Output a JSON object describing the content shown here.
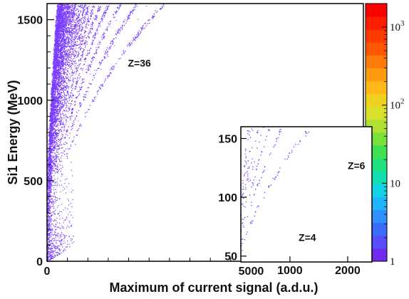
{
  "chart_data": [
    {
      "type": "scatter",
      "title": "",
      "xlabel": "Maximum of current signal (a.d.u.)",
      "ylabel": "Si1 Energy (MeV)",
      "xlim": [
        0,
        7750
      ],
      "ylim": [
        0,
        1600
      ],
      "xticks": [
        "0",
        "5000"
      ],
      "yticks": [
        "0",
        "500",
        "1000",
        "1500"
      ],
      "grid": false,
      "point_color": "#7a3cff",
      "annotations": [
        {
          "text": "Z=36",
          "x": 2330,
          "y": 1230
        }
      ],
      "bands": {
        "count": 34,
        "description": "charge-identification ridges Z=3 to Z=36",
        "energy_max_MeV": 1600
      },
      "colorbar": {
        "scale": "log",
        "range": [
          1,
          2000
        ],
        "tick_labels": [
          {
            "base": "1",
            "exp": "",
            "value": 1
          },
          {
            "base": "10",
            "exp": "",
            "value": 10
          },
          {
            "base": "10",
            "exp": "2",
            "value": 100
          },
          {
            "base": "10",
            "exp": "3",
            "value": 1000
          }
        ]
      }
    },
    {
      "type": "scatter",
      "title": "",
      "xlabel": "",
      "ylabel": "",
      "xlim": [
        150,
        2420
      ],
      "ylim": [
        45,
        160
      ],
      "xticks": [
        "1000",
        "2000"
      ],
      "yticks": [
        "50",
        "100",
        "150"
      ],
      "grid": false,
      "annotations": [
        {
          "text": "Z=6",
          "x": 2000,
          "y": 127
        },
        {
          "text": "Z=4",
          "x": 1150,
          "y": 66
        }
      ]
    }
  ]
}
